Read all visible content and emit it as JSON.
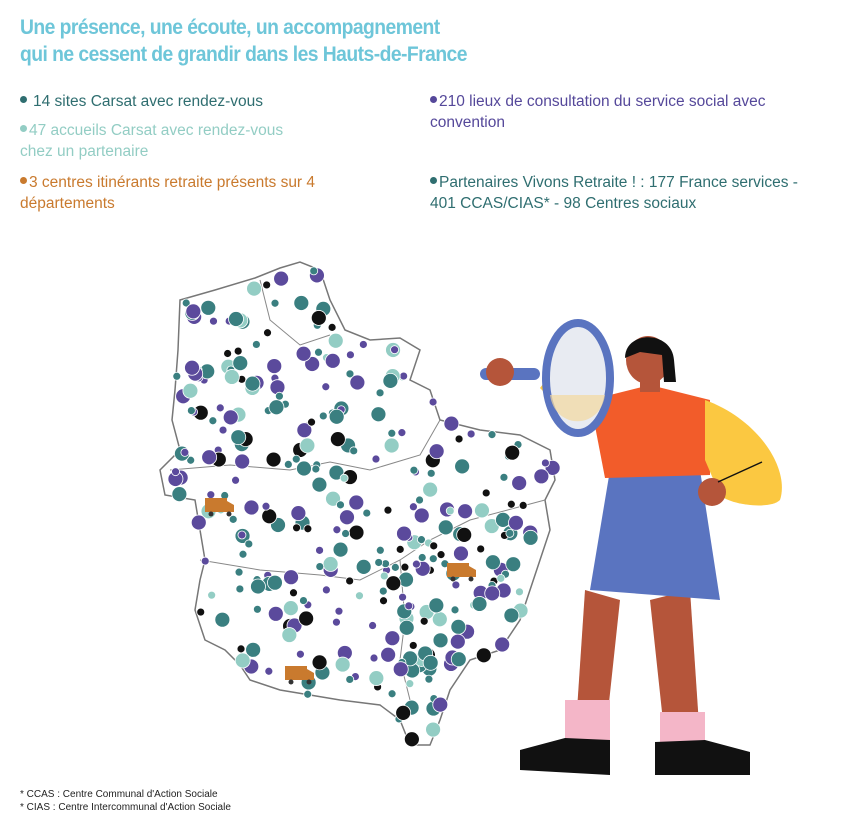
{
  "title": {
    "line1": "Une présence, une écoute, un accompagnement",
    "line2": "qui ne cessent de grandir dans les Hauts-de-France"
  },
  "legend": [
    {
      "text": "14 sites Carsat avec rendez-vous",
      "color": "#2f6e70"
    },
    {
      "text": "47 accueils Carsat avec rendez-vous chez un partenaire",
      "color": "#93cdc4"
    },
    {
      "text": "3 centres itinérants retraite présents sur 4 départements",
      "color": "#c97a2e"
    },
    {
      "text": "210 lieux de consultation du service social avec convention",
      "color": "#55489a"
    },
    {
      "text": "Partenaires Vivons Retraite ! : 177 France services - 401 CCAS/CIAS* - 98 Centres sociaux",
      "color": "#2f6e70"
    }
  ],
  "map": {
    "region": "Hauts-de-France",
    "marker_colors": {
      "carsat_site": "#111111",
      "partner": "#3a7f80",
      "accueil": "#93cdc4",
      "social": "#5b4a9c",
      "mobile": "#c97a2e"
    },
    "mobile_units_icon": "van-icon"
  },
  "footnotes": [
    "* CCAS : Centre Communal d'Action Sociale",
    "* CIAS : Centre Intercommunal d'Action Sociale"
  ]
}
